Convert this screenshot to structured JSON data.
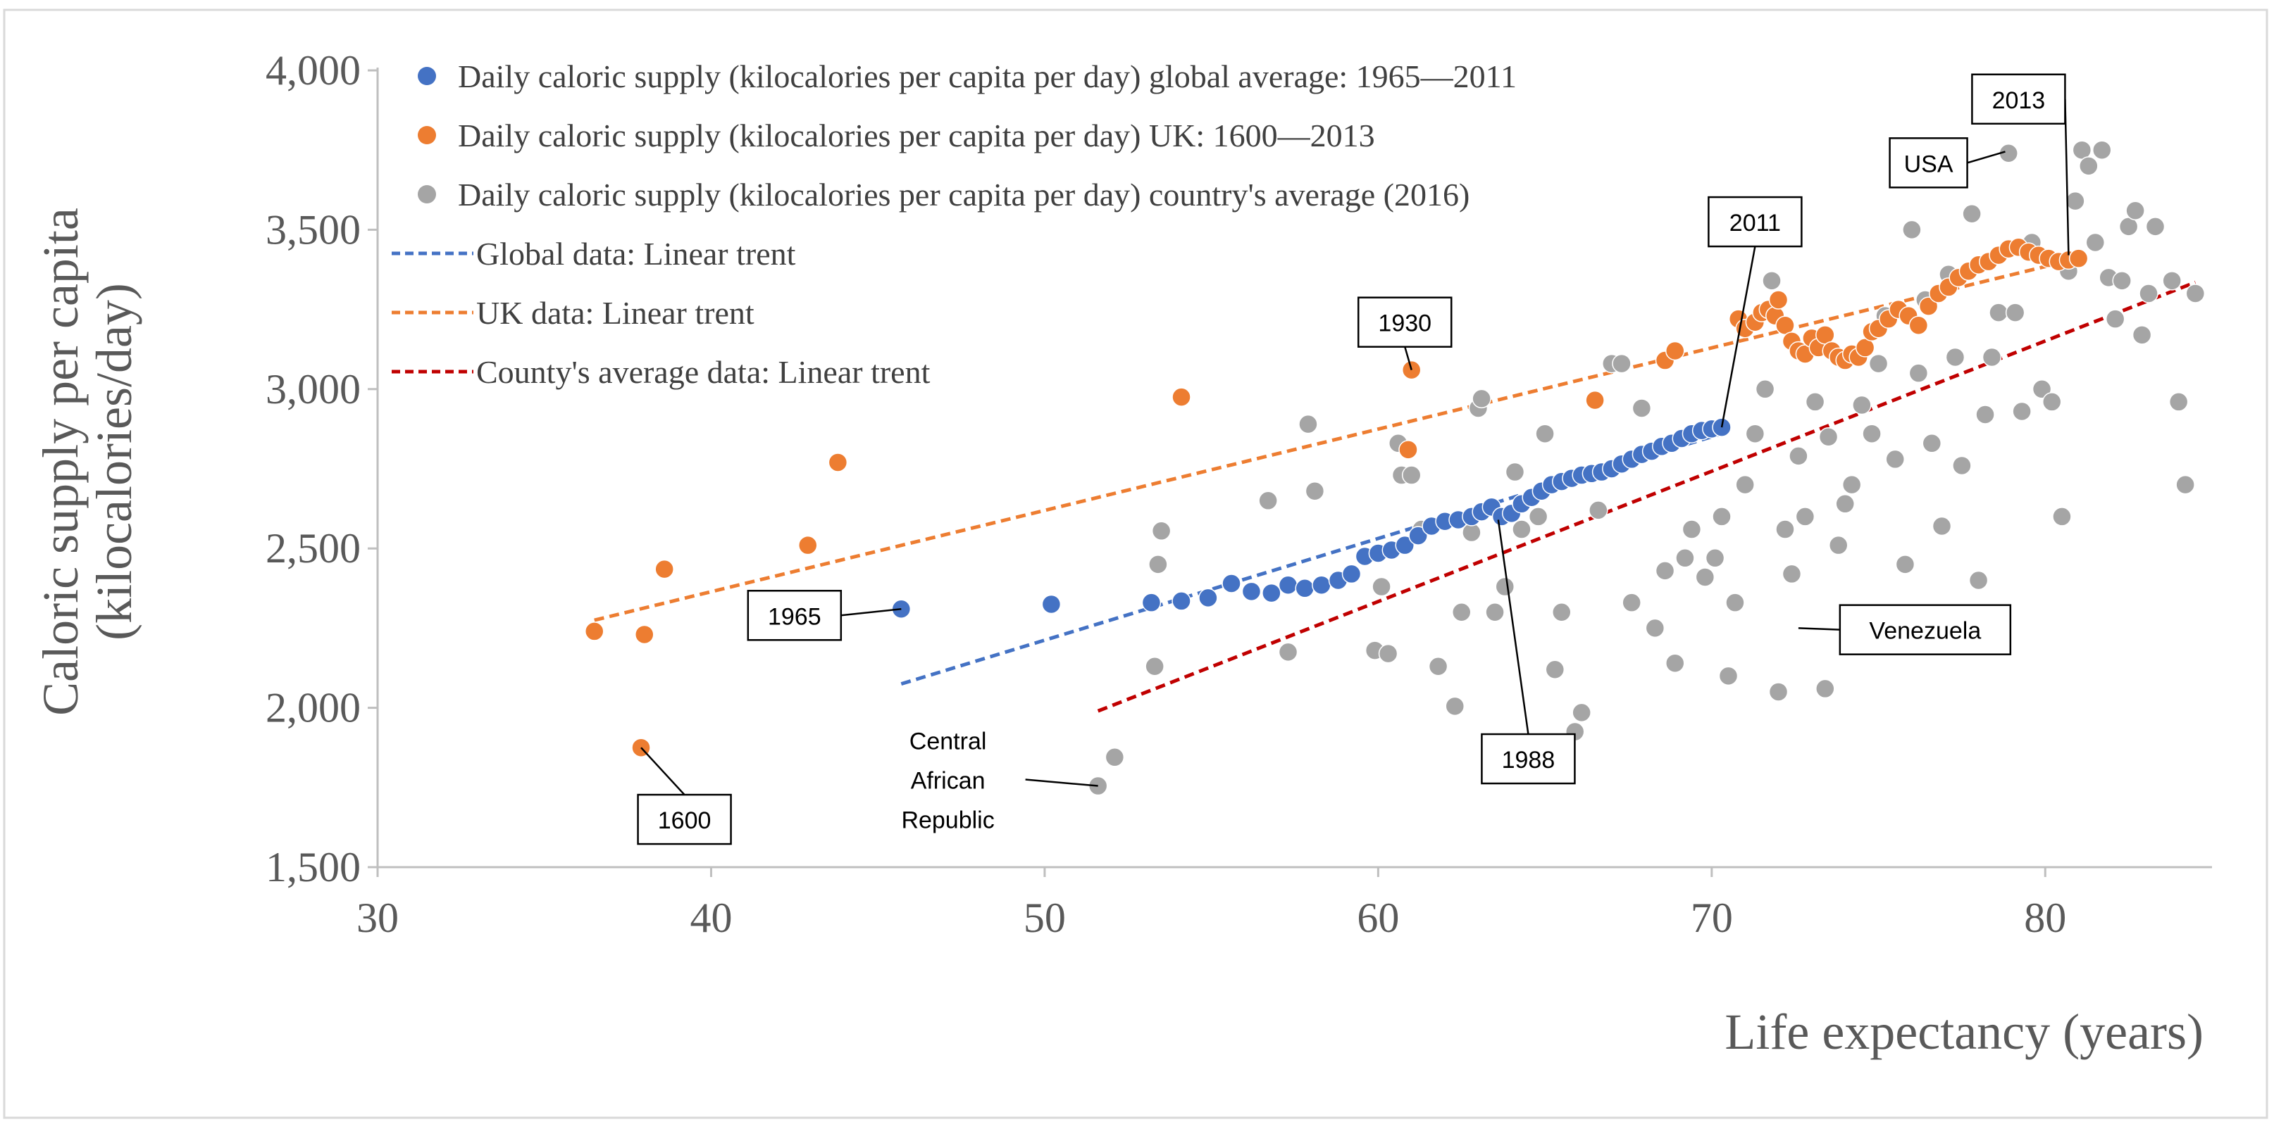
{
  "chart_data": {
    "type": "scatter",
    "title": "",
    "xlabel": "Life expectancy (years)",
    "ylabel_lines": [
      "Caloric supply per capita",
      "(kilocalories/day)"
    ],
    "xlim": [
      30,
      85
    ],
    "ylim": [
      1500,
      4000
    ],
    "x_ticks": [
      30,
      40,
      50,
      60,
      70,
      80
    ],
    "y_ticks": [
      1500,
      2000,
      2500,
      3000,
      3500,
      4000
    ],
    "x_tick_labels": [
      "30",
      "40",
      "50",
      "60",
      "70",
      "80"
    ],
    "y_tick_labels": [
      "1,500",
      "2,000",
      "2,500",
      "3,000",
      "3,500",
      "4,000"
    ],
    "grid": false,
    "legend_position": "top-left",
    "series": [
      {
        "name": "Daily caloric supply (kilocalories per capita per day) global average: 1965—2011",
        "color": "#4472C4",
        "points": [
          [
            45.7,
            2310
          ],
          [
            50.2,
            2325
          ],
          [
            53.2,
            2330
          ],
          [
            54.1,
            2335
          ],
          [
            54.9,
            2345
          ],
          [
            55.6,
            2390
          ],
          [
            56.2,
            2365
          ],
          [
            56.8,
            2360
          ],
          [
            57.3,
            2385
          ],
          [
            57.8,
            2375
          ],
          [
            58.3,
            2385
          ],
          [
            58.8,
            2400
          ],
          [
            59.2,
            2420
          ],
          [
            59.6,
            2475
          ],
          [
            60.0,
            2485
          ],
          [
            60.4,
            2495
          ],
          [
            60.8,
            2510
          ],
          [
            61.2,
            2540
          ],
          [
            61.6,
            2570
          ],
          [
            62.0,
            2585
          ],
          [
            62.4,
            2590
          ],
          [
            62.8,
            2600
          ],
          [
            63.1,
            2615
          ],
          [
            63.4,
            2630
          ],
          [
            63.7,
            2600
          ],
          [
            64.0,
            2610
          ],
          [
            64.3,
            2640
          ],
          [
            64.6,
            2660
          ],
          [
            64.9,
            2680
          ],
          [
            65.2,
            2700
          ],
          [
            65.5,
            2710
          ],
          [
            65.8,
            2720
          ],
          [
            66.1,
            2730
          ],
          [
            66.4,
            2735
          ],
          [
            66.7,
            2740
          ],
          [
            67.0,
            2750
          ],
          [
            67.3,
            2765
          ],
          [
            67.6,
            2780
          ],
          [
            67.9,
            2795
          ],
          [
            68.2,
            2805
          ],
          [
            68.5,
            2820
          ],
          [
            68.8,
            2830
          ],
          [
            69.1,
            2845
          ],
          [
            69.4,
            2860
          ],
          [
            69.7,
            2870
          ],
          [
            70.0,
            2875
          ],
          [
            70.3,
            2880
          ]
        ]
      },
      {
        "name": "Daily caloric supply (kilocalories per capita per day) UK: 1600—2013",
        "color": "#ED7D31",
        "points": [
          [
            36.5,
            2240
          ],
          [
            37.9,
            1875
          ],
          [
            38.0,
            2230
          ],
          [
            38.6,
            2435
          ],
          [
            42.9,
            2510
          ],
          [
            43.8,
            2770
          ],
          [
            54.1,
            2975
          ],
          [
            60.9,
            2810
          ],
          [
            61.0,
            3060
          ],
          [
            66.5,
            2965
          ],
          [
            68.6,
            3090
          ],
          [
            68.9,
            3120
          ],
          [
            70.8,
            3220
          ],
          [
            71.0,
            3190
          ],
          [
            71.3,
            3210
          ],
          [
            71.5,
            3240
          ],
          [
            71.7,
            3250
          ],
          [
            71.9,
            3230
          ],
          [
            72.0,
            3280
          ],
          [
            72.2,
            3200
          ],
          [
            72.4,
            3150
          ],
          [
            72.6,
            3120
          ],
          [
            72.8,
            3110
          ],
          [
            73.0,
            3160
          ],
          [
            73.2,
            3130
          ],
          [
            73.4,
            3170
          ],
          [
            73.6,
            3120
          ],
          [
            73.8,
            3100
          ],
          [
            74.0,
            3090
          ],
          [
            74.2,
            3110
          ],
          [
            74.4,
            3100
          ],
          [
            74.6,
            3130
          ],
          [
            74.8,
            3180
          ],
          [
            75.0,
            3190
          ],
          [
            75.3,
            3220
          ],
          [
            75.6,
            3250
          ],
          [
            75.9,
            3230
          ],
          [
            76.2,
            3200
          ],
          [
            76.5,
            3260
          ],
          [
            76.8,
            3300
          ],
          [
            77.1,
            3320
          ],
          [
            77.4,
            3350
          ],
          [
            77.7,
            3370
          ],
          [
            78.0,
            3390
          ],
          [
            78.3,
            3400
          ],
          [
            78.6,
            3420
          ],
          [
            78.9,
            3440
          ],
          [
            79.2,
            3445
          ],
          [
            79.5,
            3430
          ],
          [
            79.8,
            3420
          ],
          [
            80.1,
            3410
          ],
          [
            80.4,
            3400
          ],
          [
            80.7,
            3405
          ],
          [
            81.0,
            3410
          ]
        ]
      },
      {
        "name": "Daily caloric supply (kilocalories per capita per day) country's average (2016)",
        "color": "#A5A5A5",
        "points": [
          [
            51.6,
            1755
          ],
          [
            52.1,
            1845
          ],
          [
            53.3,
            2130
          ],
          [
            53.4,
            2450
          ],
          [
            53.5,
            2555
          ],
          [
            56.7,
            2650
          ],
          [
            57.3,
            2175
          ],
          [
            57.9,
            2890
          ],
          [
            58.1,
            2680
          ],
          [
            59.9,
            2180
          ],
          [
            60.1,
            2380
          ],
          [
            60.3,
            2170
          ],
          [
            60.6,
            2830
          ],
          [
            60.7,
            2730
          ],
          [
            61.0,
            2730
          ],
          [
            61.3,
            2560
          ],
          [
            61.8,
            2130
          ],
          [
            62.3,
            2005
          ],
          [
            62.5,
            2300
          ],
          [
            62.8,
            2550
          ],
          [
            63.0,
            2940
          ],
          [
            63.1,
            2970
          ],
          [
            63.5,
            2300
          ],
          [
            63.8,
            2380
          ],
          [
            64.1,
            2740
          ],
          [
            64.3,
            2560
          ],
          [
            64.8,
            2600
          ],
          [
            65.0,
            2860
          ],
          [
            65.3,
            2120
          ],
          [
            65.5,
            2300
          ],
          [
            65.9,
            1925
          ],
          [
            66.1,
            1985
          ],
          [
            66.6,
            2620
          ],
          [
            67.0,
            3080
          ],
          [
            67.3,
            3080
          ],
          [
            67.6,
            2330
          ],
          [
            67.9,
            2940
          ],
          [
            68.3,
            2250
          ],
          [
            68.6,
            2430
          ],
          [
            68.9,
            2140
          ],
          [
            69.2,
            2470
          ],
          [
            69.4,
            2560
          ],
          [
            69.8,
            2410
          ],
          [
            70.1,
            2470
          ],
          [
            70.3,
            2600
          ],
          [
            70.5,
            2100
          ],
          [
            70.7,
            2330
          ],
          [
            71.0,
            2700
          ],
          [
            71.3,
            2860
          ],
          [
            71.6,
            3000
          ],
          [
            71.8,
            3340
          ],
          [
            72.0,
            2050
          ],
          [
            72.2,
            2560
          ],
          [
            72.4,
            2420
          ],
          [
            72.6,
            2790
          ],
          [
            72.8,
            2600
          ],
          [
            73.1,
            2960
          ],
          [
            73.4,
            2060
          ],
          [
            73.5,
            2850
          ],
          [
            73.8,
            2510
          ],
          [
            74.0,
            2640
          ],
          [
            74.2,
            2700
          ],
          [
            74.5,
            2950
          ],
          [
            74.8,
            2860
          ],
          [
            75.0,
            3080
          ],
          [
            75.2,
            3230
          ],
          [
            75.5,
            2780
          ],
          [
            75.8,
            2450
          ],
          [
            76.0,
            3500
          ],
          [
            76.2,
            3050
          ],
          [
            76.4,
            3280
          ],
          [
            76.6,
            2830
          ],
          [
            76.9,
            2570
          ],
          [
            77.1,
            3360
          ],
          [
            77.3,
            3100
          ],
          [
            77.5,
            2760
          ],
          [
            77.8,
            3550
          ],
          [
            78.0,
            2400
          ],
          [
            78.2,
            2920
          ],
          [
            78.4,
            3100
          ],
          [
            78.6,
            3240
          ],
          [
            78.9,
            3740
          ],
          [
            79.1,
            3240
          ],
          [
            79.3,
            2930
          ],
          [
            79.6,
            3460
          ],
          [
            79.9,
            3000
          ],
          [
            80.2,
            2960
          ],
          [
            80.5,
            2600
          ],
          [
            80.7,
            3370
          ],
          [
            80.9,
            3590
          ],
          [
            81.1,
            3750
          ],
          [
            81.3,
            3700
          ],
          [
            81.5,
            3460
          ],
          [
            81.7,
            3750
          ],
          [
            81.9,
            3350
          ],
          [
            82.1,
            3220
          ],
          [
            82.3,
            3340
          ],
          [
            82.5,
            3510
          ],
          [
            82.7,
            3560
          ],
          [
            82.9,
            3170
          ],
          [
            83.1,
            3300
          ],
          [
            83.3,
            3510
          ],
          [
            83.8,
            3340
          ],
          [
            84.0,
            2960
          ],
          [
            84.2,
            2700
          ],
          [
            84.5,
            3300
          ]
        ]
      }
    ],
    "trendlines": [
      {
        "name": "Global data: Linear trent",
        "color": "#4472C4",
        "x": [
          45.7,
          70.3
        ],
        "y": [
          2075,
          2860
        ]
      },
      {
        "name": "UK data: Linear trent",
        "color": "#ED7D31",
        "x": [
          36.5,
          81.0
        ],
        "y": [
          2275,
          3410
        ]
      },
      {
        "name": "County's average data: Linear trent",
        "color": "#C00000",
        "x": [
          51.6,
          84.5
        ],
        "y": [
          1990,
          3335
        ]
      }
    ],
    "annotations": [
      {
        "label": "1600",
        "lines": [
          "1600"
        ],
        "box": [
          39.2,
          1650
        ],
        "point": [
          37.9,
          1875
        ]
      },
      {
        "label": "1965",
        "lines": [
          "1965"
        ],
        "box": [
          42.5,
          2290
        ],
        "point": [
          45.7,
          2310
        ]
      },
      {
        "label": "1930",
        "lines": [
          "1930"
        ],
        "box": [
          60.8,
          3210
        ],
        "point": [
          61.0,
          3060
        ]
      },
      {
        "label": "Central African Republic",
        "lines": [
          "Central",
          "African",
          "Republic"
        ],
        "box": [
          47.1,
          1775
        ],
        "point": [
          51.6,
          1755
        ]
      },
      {
        "label": "1988",
        "lines": [
          "1988"
        ],
        "box": [
          64.5,
          1840
        ],
        "point": [
          63.6,
          2590
        ]
      },
      {
        "label": "2011",
        "lines": [
          "2011"
        ],
        "box": [
          71.3,
          3525
        ],
        "point": [
          70.3,
          2880
        ]
      },
      {
        "label": "Venezuela",
        "lines": [
          "Venezuela"
        ],
        "box": [
          76.4,
          2245
        ],
        "point": [
          72.6,
          2250
        ]
      },
      {
        "label": "USA",
        "lines": [
          "USA"
        ],
        "box": [
          76.5,
          3710
        ],
        "point": [
          78.8,
          3745
        ]
      },
      {
        "label": "2013",
        "lines": [
          "2013"
        ],
        "box": [
          79.2,
          3910
        ],
        "point": [
          80.7,
          3420
        ]
      }
    ]
  }
}
